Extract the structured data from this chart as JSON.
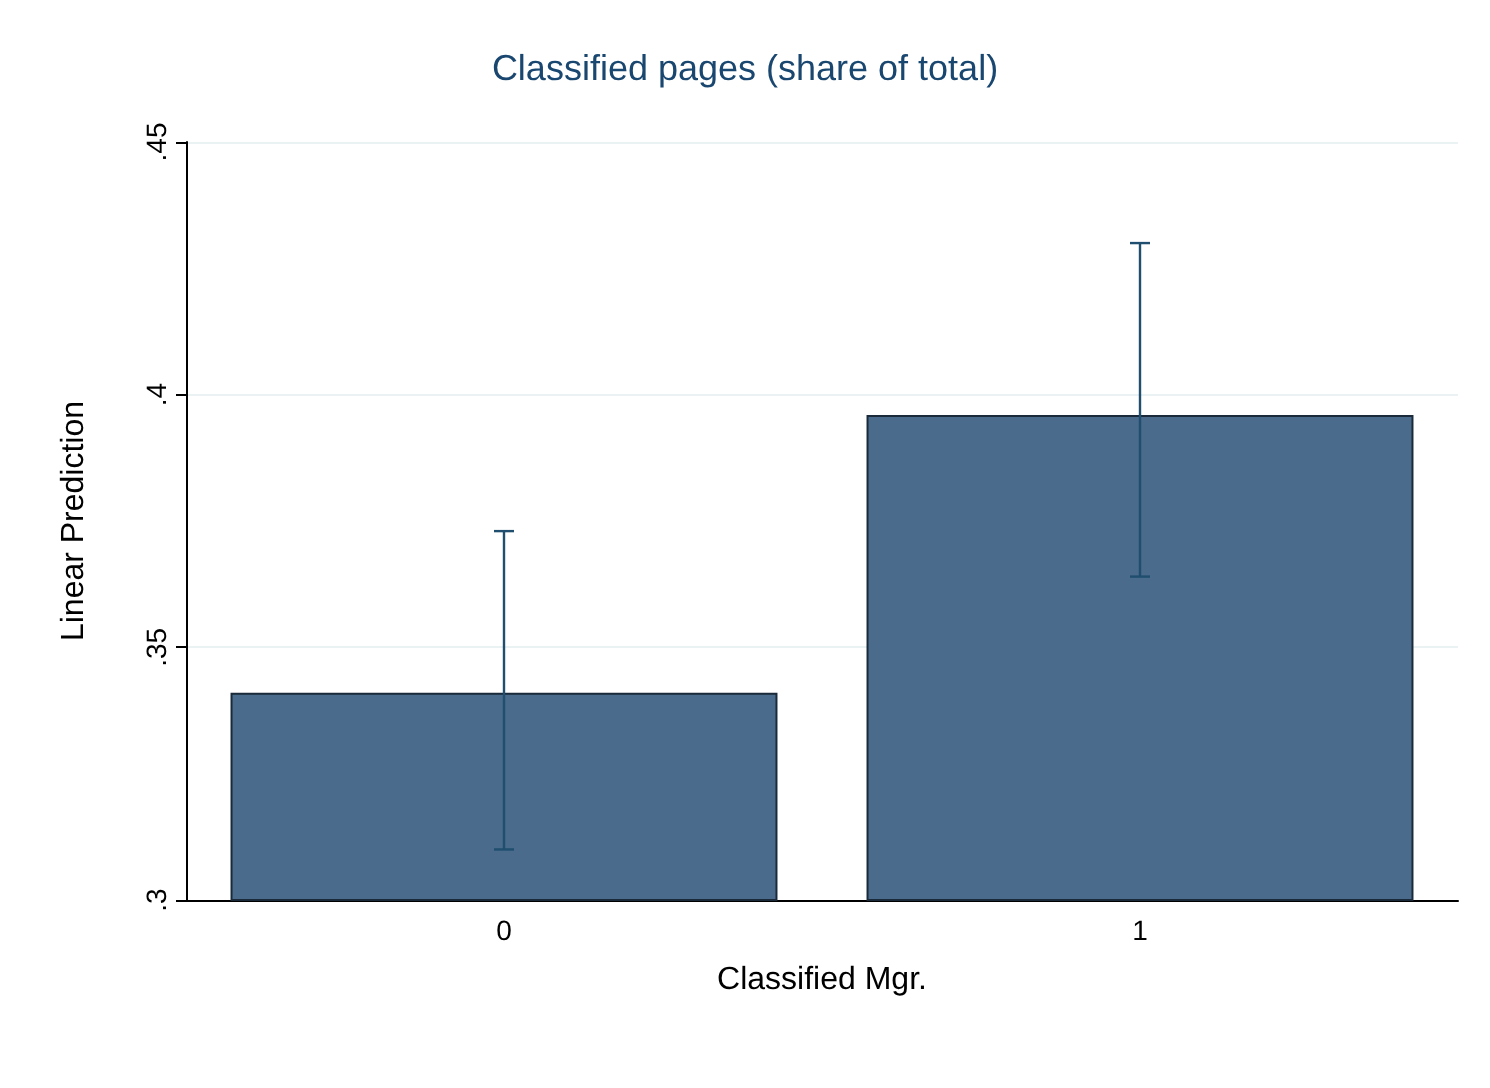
{
  "chart_data": {
    "type": "bar",
    "title": "Classified pages (share of total)",
    "xlabel": "Classified Mgr.",
    "ylabel": "Linear Prediction",
    "categories": [
      "0",
      "1"
    ],
    "values": [
      0.341,
      0.396
    ],
    "errors": [
      [
        0.31,
        0.373
      ],
      [
        0.364,
        0.43
      ]
    ],
    "color": "#4a6b8b",
    "ylim": [
      0.3,
      0.45
    ],
    "yticks": [
      {
        "value": 0.3,
        "label": ".3"
      },
      {
        "value": 0.35,
        "label": ".35"
      },
      {
        "value": 0.4,
        "label": ".4"
      },
      {
        "value": 0.45,
        "label": ".45"
      }
    ],
    "grid": "y"
  }
}
